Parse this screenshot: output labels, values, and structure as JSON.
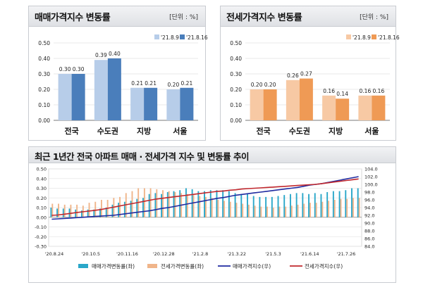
{
  "chart_data": [
    {
      "type": "bar",
      "title": "매매가격지수 변동률",
      "unit": "[단위 : %]",
      "ylim": [
        0,
        0.5
      ],
      "yticks": [
        "0.50",
        "0.40",
        "0.30",
        "0.20",
        "0.10",
        "0.00"
      ],
      "categories": [
        "전국",
        "수도권",
        "지방",
        "서울"
      ],
      "series": [
        {
          "name": "'21.8.9",
          "values": [
            0.3,
            0.39,
            0.21,
            0.2
          ],
          "labels": [
            "0.30",
            "0.39",
            "0.21",
            "0.20"
          ]
        },
        {
          "name": "'21.8.16",
          "values": [
            0.3,
            0.4,
            0.21,
            0.21
          ],
          "labels": [
            "0.30",
            "0.40",
            "0.21",
            "0.21"
          ]
        }
      ],
      "colors": [
        "#b7cde9",
        "#4a7ebb"
      ],
      "legend": "top-right"
    },
    {
      "type": "bar",
      "title": "전세가격지수 변동률",
      "unit": "[단위 : %]",
      "ylim": [
        0,
        0.5
      ],
      "yticks": [
        "0.50",
        "0.40",
        "0.30",
        "0.20",
        "0.10",
        "0.00"
      ],
      "categories": [
        "전국",
        "수도권",
        "지방",
        "서울"
      ],
      "series": [
        {
          "name": "'21.8.9",
          "values": [
            0.2,
            0.26,
            0.16,
            0.16
          ],
          "labels": [
            "0.20",
            "0.26",
            "0.16",
            "0.16"
          ]
        },
        {
          "name": "'21.8.16",
          "values": [
            0.2,
            0.27,
            0.14,
            0.16
          ],
          "labels": [
            "0.20",
            "0.27",
            "0.14",
            "0.16"
          ]
        }
      ],
      "colors": [
        "#f7c9a4",
        "#ef9a55"
      ],
      "legend": "top-right"
    },
    {
      "type": "bar+line",
      "title": "최근 1년간 전국 아파트 매매 · 전세가격 지수 및 변동률 추이",
      "y_left_lim": [
        -0.3,
        0.5
      ],
      "y_left_ticks": [
        "0.50",
        "0.40",
        "0.30",
        "0.20",
        "0.10",
        "0.00",
        "-0.10",
        "-0.20",
        "-0.30"
      ],
      "y_right_lim": [
        84,
        104
      ],
      "y_right_ticks": [
        "104.0",
        "102.0",
        "100.0",
        "98.0",
        "96.0",
        "94.0",
        "92.0",
        "90.0",
        "88.0",
        "86.0",
        "84.0"
      ],
      "x_tick_labels": [
        "'20.8.24",
        "'20.10.5",
        "'20.11.16",
        "'20.12.28",
        "'21.2.8",
        "'21.3.22",
        "'21.5.3",
        "'21.6.14",
        "'21.7.26"
      ],
      "bar_series": [
        {
          "name": "매매가격변동률(좌)",
          "color": "#2aa7c9",
          "values": [
            0.1,
            0.09,
            0.09,
            0.09,
            0.08,
            0.07,
            0.08,
            0.08,
            0.09,
            0.1,
            0.13,
            0.15,
            0.16,
            0.17,
            0.19,
            0.2,
            0.24,
            0.25,
            0.24,
            0.26,
            0.27,
            0.28,
            0.3,
            0.29,
            0.27,
            0.27,
            0.28,
            0.28,
            0.28,
            0.27,
            0.25,
            0.24,
            0.24,
            0.22,
            0.21,
            0.21,
            0.21,
            0.22,
            0.23,
            0.24,
            0.25,
            0.25,
            0.24,
            0.25,
            0.24,
            0.26,
            0.27,
            0.27,
            0.28,
            0.3,
            0.3
          ]
        },
        {
          "name": "전세가격변동률(좌)",
          "color": "#f0b58a",
          "values": [
            0.14,
            0.14,
            0.13,
            0.13,
            0.13,
            0.12,
            0.15,
            0.16,
            0.18,
            0.18,
            0.2,
            0.21,
            0.25,
            0.27,
            0.3,
            0.3,
            0.3,
            0.29,
            0.28,
            0.27,
            0.26,
            0.25,
            0.24,
            0.23,
            0.22,
            0.21,
            0.2,
            0.18,
            0.17,
            0.16,
            0.15,
            0.14,
            0.13,
            0.12,
            0.11,
            0.11,
            0.1,
            0.11,
            0.11,
            0.12,
            0.13,
            0.14,
            0.15,
            0.15,
            0.16,
            0.17,
            0.18,
            0.19,
            0.19,
            0.2,
            0.2
          ]
        }
      ],
      "line_series": [
        {
          "name": "매매가격지수(우)",
          "color": "#1f2aa0",
          "values": [
            91.0,
            91.1,
            91.2,
            91.3,
            91.4,
            91.5,
            91.6,
            91.7,
            91.8,
            91.9,
            92.0,
            92.2,
            92.4,
            92.6,
            92.8,
            93.0,
            93.2,
            93.5,
            93.8,
            94.0,
            94.3,
            94.6,
            94.9,
            95.2,
            95.5,
            95.8,
            96.1,
            96.4,
            96.6,
            96.9,
            97.2,
            97.4,
            97.6,
            97.8,
            98.0,
            98.2,
            98.4,
            98.6,
            98.8,
            99.0,
            99.2,
            99.5,
            99.8,
            100.0,
            100.2,
            100.5,
            100.8,
            101.1,
            101.4,
            101.7,
            102.0
          ]
        },
        {
          "name": "전세가격지수(우)",
          "color": "#c0272d",
          "values": [
            92.0,
            92.1,
            92.3,
            92.5,
            92.7,
            92.9,
            93.1,
            93.3,
            93.5,
            93.8,
            94.1,
            94.4,
            94.7,
            95.0,
            95.3,
            95.6,
            95.9,
            96.2,
            96.4,
            96.6,
            96.8,
            97.0,
            97.2,
            97.4,
            97.6,
            97.8,
            98.0,
            98.2,
            98.3,
            98.5,
            98.6,
            98.8,
            98.9,
            99.0,
            99.1,
            99.2,
            99.3,
            99.4,
            99.5,
            99.6,
            99.7,
            99.8,
            99.9,
            100.0,
            100.2,
            100.4,
            100.6,
            100.8,
            101.0,
            101.2,
            101.4
          ]
        }
      ],
      "legend": "bottom"
    }
  ]
}
